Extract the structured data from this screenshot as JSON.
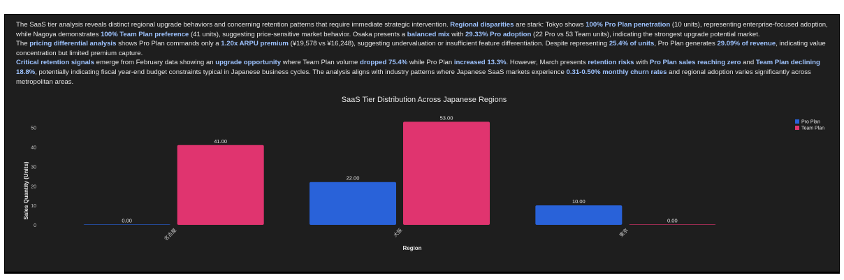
{
  "analysis": {
    "p1": [
      {
        "t": "The SaaS tier analysis reveals distinct regional upgrade behaviors and concerning retention patterns that require immediate strategic intervention. "
      },
      {
        "t": "Regional disparities",
        "hl": true
      },
      {
        "t": " are stark: Tokyo shows "
      },
      {
        "t": "100% Pro Plan penetration",
        "hl": true
      },
      {
        "t": " (10 units), representing enterprise-focused adoption, while Nagoya demonstrates "
      },
      {
        "t": "100% Team Plan preference",
        "hl": true
      },
      {
        "t": " (41 units), suggesting price-sensitive market behavior. Osaka presents a "
      },
      {
        "t": "balanced mix",
        "hl": true
      },
      {
        "t": " with "
      },
      {
        "t": "29.33% Pro adoption",
        "hl": true
      },
      {
        "t": " (22 Pro vs 53 Team units), indicating the strongest upgrade potential market."
      }
    ],
    "p2": [
      {
        "t": "The "
      },
      {
        "t": "pricing differential analysis",
        "hl": true
      },
      {
        "t": " shows Pro Plan commands only a "
      },
      {
        "t": "1.20x ARPU premium",
        "hl": true
      },
      {
        "t": " (¥19,578 vs ¥16,248), suggesting undervaluation or insufficient feature differentiation. Despite representing "
      },
      {
        "t": "25.4% of units",
        "hl": true
      },
      {
        "t": ", Pro Plan generates "
      },
      {
        "t": "29.09% of revenue",
        "hl": true
      },
      {
        "t": ", indicating value concentration but limited premium capture."
      }
    ],
    "p3": [
      {
        "t": "Critical retention signals",
        "hl": true
      },
      {
        "t": " emerge from February data showing an "
      },
      {
        "t": "upgrade opportunity",
        "hl": true
      },
      {
        "t": " where Team Plan volume "
      },
      {
        "t": "dropped 75.4%",
        "hl": true
      },
      {
        "t": " while Pro Plan "
      },
      {
        "t": "increased 13.3%",
        "hl": true
      },
      {
        "t": ". However, March presents "
      },
      {
        "t": "retention risks",
        "hl": true
      },
      {
        "t": " with "
      },
      {
        "t": "Pro Plan sales reaching zero",
        "hl": true
      },
      {
        "t": " and "
      },
      {
        "t": "Team Plan declining 18.8%",
        "hl": true
      },
      {
        "t": ", potentially indicating fiscal year-end budget constraints typical in Japanese business cycles. The analysis aligns with industry patterns where Japanese SaaS markets experience "
      },
      {
        "t": "0.31-0.50% monthly churn rates",
        "hl": true
      },
      {
        "t": " and regional adoption varies significantly across metropolitan areas."
      }
    ]
  },
  "colors": {
    "panel_bg": "#1e1e1e",
    "text": "#e6e6e6",
    "highlight": "#9ec3ff",
    "pro": "#2962d9",
    "team": "#e0346f",
    "axis_text": "#c8c8c8"
  },
  "chart_data": {
    "type": "bar",
    "title": "SaaS Tier Distribution Across Japanese Regions",
    "xlabel": "Region",
    "ylabel": "Sales Quantity (Units)",
    "categories": [
      "名古屋",
      "大阪",
      "東京"
    ],
    "series": [
      {
        "name": "Pro Plan",
        "values": [
          0,
          22,
          10
        ],
        "labels": [
          "0.00",
          "22.00",
          "10.00"
        ]
      },
      {
        "name": "Team Plan",
        "values": [
          41,
          53,
          0
        ],
        "labels": [
          "41.00",
          "53.00",
          "0.00"
        ]
      }
    ],
    "yticks": [
      0,
      10,
      20,
      30,
      40,
      50
    ],
    "ylim": [
      0,
      56
    ],
    "grid": false,
    "legend": "top-right"
  }
}
